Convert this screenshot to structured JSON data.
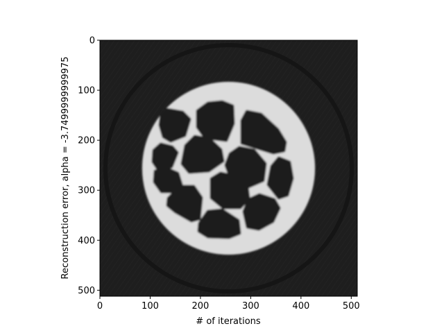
{
  "chart_data": {
    "type": "heatmap",
    "title": "",
    "xlabel": "# of iterations",
    "ylabel": "Reconstruction error, alpha = -3.7499999999975",
    "xlim": [
      0,
      512
    ],
    "ylim": [
      512,
      0
    ],
    "x_ticks": [
      0,
      100,
      200,
      300,
      400,
      500
    ],
    "y_ticks": [
      0,
      100,
      200,
      300,
      400,
      500
    ],
    "colormap": "gray",
    "background_color": "#1e1e1e",
    "phantom": {
      "center": [
        256,
        256
      ],
      "ring_outer_radius": 172,
      "ring_inner_radius": 156,
      "ring_color": "#dcdcdc",
      "halo_radius": 245
    }
  }
}
